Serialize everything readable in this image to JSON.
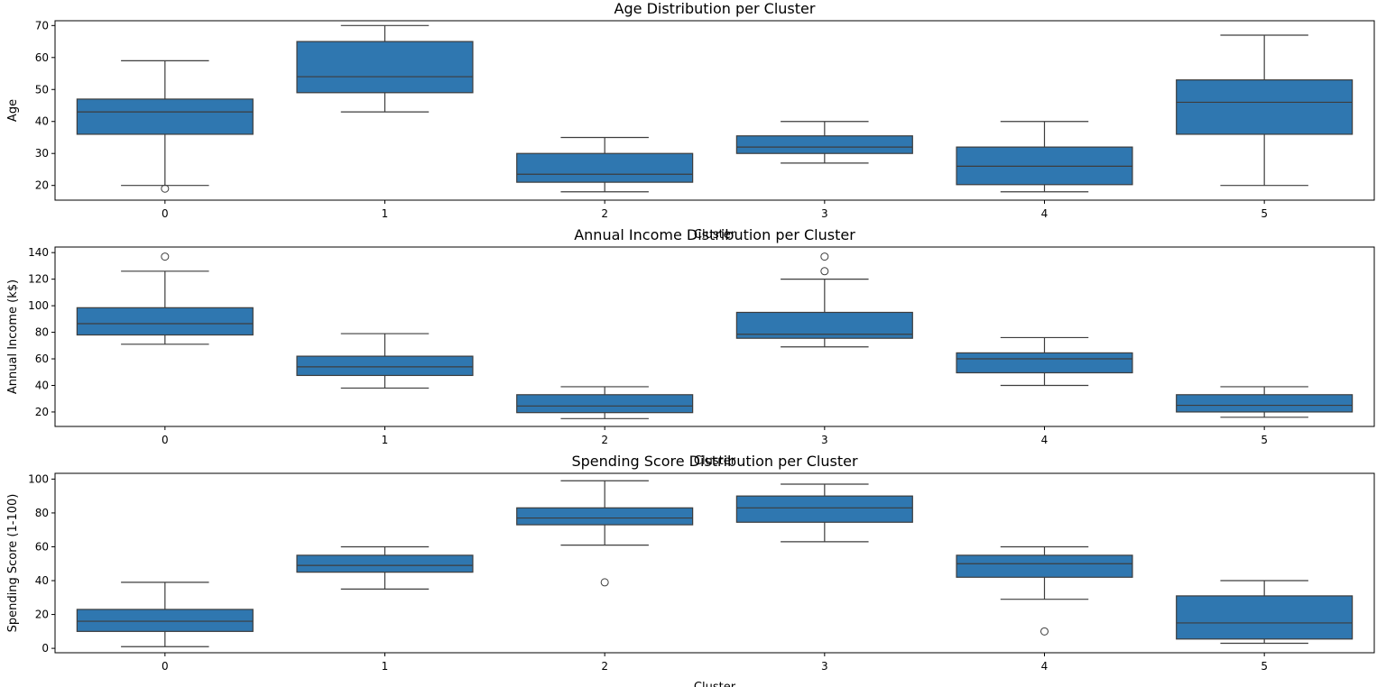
{
  "chart_data": [
    {
      "type": "box",
      "title": "Age Distribution per Cluster",
      "xlabel": "Cluster",
      "ylabel": "Age",
      "ylim": [
        15.4,
        71.5
      ],
      "yticks": [
        20,
        30,
        40,
        50,
        60,
        70
      ],
      "categories": [
        "0",
        "1",
        "2",
        "3",
        "4",
        "5"
      ],
      "color": "#2f77b0",
      "boxes": [
        {
          "whislo": 20,
          "q1": 36,
          "med": 43,
          "q3": 47,
          "whishi": 59,
          "fliers": [
            19
          ]
        },
        {
          "whislo": 43,
          "q1": 49,
          "med": 54,
          "q3": 65,
          "whishi": 70,
          "fliers": []
        },
        {
          "whislo": 18,
          "q1": 21,
          "med": 23.5,
          "q3": 30,
          "whishi": 35,
          "fliers": []
        },
        {
          "whislo": 27,
          "q1": 30,
          "med": 32,
          "q3": 35.5,
          "whishi": 40,
          "fliers": []
        },
        {
          "whislo": 18,
          "q1": 20.25,
          "med": 26,
          "q3": 32,
          "whishi": 40,
          "fliers": []
        },
        {
          "whislo": 20,
          "q1": 36,
          "med": 46,
          "q3": 53,
          "whishi": 67,
          "fliers": []
        }
      ]
    },
    {
      "type": "box",
      "title": "Annual Income Distribution per Cluster",
      "xlabel": "Cluster",
      "ylabel": "Annual Income (k$)",
      "ylim": [
        9.1,
        144.2
      ],
      "yticks": [
        20,
        40,
        60,
        80,
        100,
        120,
        140
      ],
      "categories": [
        "0",
        "1",
        "2",
        "3",
        "4",
        "5"
      ],
      "color": "#2f77b0",
      "boxes": [
        {
          "whislo": 71,
          "q1": 78,
          "med": 86.5,
          "q3": 98.5,
          "whishi": 126,
          "fliers": [
            137
          ]
        },
        {
          "whislo": 38,
          "q1": 47.5,
          "med": 54,
          "q3": 62,
          "whishi": 79,
          "fliers": []
        },
        {
          "whislo": 15,
          "q1": 19.5,
          "med": 24.5,
          "q3": 33,
          "whishi": 39,
          "fliers": []
        },
        {
          "whislo": 69,
          "q1": 75.5,
          "med": 78.5,
          "q3": 95,
          "whishi": 120,
          "fliers": [
            126,
            137
          ]
        },
        {
          "whislo": 40,
          "q1": 49.5,
          "med": 60,
          "q3": 64.5,
          "whishi": 76,
          "fliers": []
        },
        {
          "whislo": 16,
          "q1": 20,
          "med": 25,
          "q3": 33,
          "whishi": 39,
          "fliers": []
        }
      ]
    },
    {
      "type": "box",
      "title": "Spending Score Distribution per Cluster",
      "xlabel": "Cluster",
      "ylabel": "Spending Score (1-100)",
      "ylim": [
        -2.6,
        103.4
      ],
      "yticks": [
        0,
        20,
        40,
        60,
        80,
        100
      ],
      "categories": [
        "0",
        "1",
        "2",
        "3",
        "4",
        "5"
      ],
      "color": "#2f77b0",
      "boxes": [
        {
          "whislo": 1,
          "q1": 10,
          "med": 16,
          "q3": 23,
          "whishi": 39,
          "fliers": []
        },
        {
          "whislo": 35,
          "q1": 45,
          "med": 49,
          "q3": 55,
          "whishi": 60,
          "fliers": []
        },
        {
          "whislo": 61,
          "q1": 73,
          "med": 77,
          "q3": 83,
          "whishi": 99,
          "fliers": [
            39
          ]
        },
        {
          "whislo": 63,
          "q1": 74.5,
          "med": 83,
          "q3": 90,
          "whishi": 97,
          "fliers": []
        },
        {
          "whislo": 29,
          "q1": 42,
          "med": 50,
          "q3": 55,
          "whishi": 60,
          "fliers": [
            10
          ]
        },
        {
          "whislo": 3,
          "q1": 5.5,
          "med": 15,
          "q3": 31,
          "whishi": 40,
          "fliers": []
        }
      ]
    }
  ]
}
